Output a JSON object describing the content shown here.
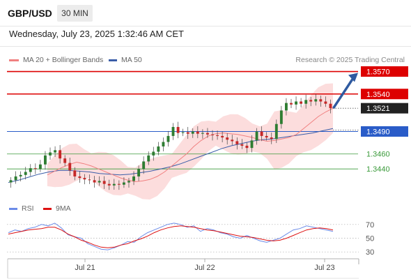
{
  "header": {
    "pair": "GBP/USD",
    "timeframe": "30 MIN",
    "datetime": "Wednesday, July 23, 2025 1:32:46 AM CET"
  },
  "legend": {
    "ma20_label": "MA 20 + Bollinger Bands",
    "ma50_label": "MA 50",
    "credit": "Research © 2025 Trading Central",
    "rsi_label": "RSI",
    "rsi_ma_label": "9MA"
  },
  "colors": {
    "resistance": "#dd0000",
    "support_line": "#2a5cc8",
    "support_green": "#3a9a3a",
    "ma20": "#f08080",
    "ma50": "#3a5da8",
    "bollinger_fill": "#fbd7d7",
    "candle_up": "#2e7d32",
    "candle_down": "#c62828",
    "rsi": "#6b8be8",
    "rsi_ma": "#dd1111",
    "arrow": "#2f5aa0"
  },
  "chart_data": [
    {
      "type": "candlestick",
      "title": "GBP/USD 30 MIN",
      "ylim": [
        1.3416,
        1.3577
      ],
      "x_ticks": [
        "Jul 21",
        "Jul 22",
        "Jul 23"
      ],
      "levels": [
        {
          "label": "1.3570",
          "value": 1.357,
          "kind": "resistance"
        },
        {
          "label": "1.3540",
          "value": 1.354,
          "kind": "resistance"
        },
        {
          "label": "1.3521",
          "value": 1.3521,
          "kind": "current"
        },
        {
          "label": "1.3490",
          "value": 1.349,
          "kind": "pivot"
        },
        {
          "label": "1.3460",
          "value": 1.346,
          "kind": "support"
        },
        {
          "label": "1.3440",
          "value": 1.344,
          "kind": "support"
        }
      ],
      "series": [
        {
          "name": "Price",
          "values": [
            1.3425,
            1.343,
            1.3432,
            1.3436,
            1.3441,
            1.344,
            1.3446,
            1.3458,
            1.3462,
            1.3465,
            1.3454,
            1.3448,
            1.3438,
            1.343,
            1.3428,
            1.3426,
            1.3425,
            1.3422,
            1.3424,
            1.342,
            1.3418,
            1.342,
            1.3419,
            1.3422,
            1.3424,
            1.343,
            1.344,
            1.345,
            1.3458,
            1.3463,
            1.347,
            1.3476,
            1.3484,
            1.3496,
            1.3488,
            1.3489,
            1.3487,
            1.349,
            1.3487,
            1.3488,
            1.3486,
            1.3485,
            1.3484,
            1.3482,
            1.3479,
            1.3477,
            1.3473,
            1.3471,
            1.3468,
            1.3478,
            1.349,
            1.3484,
            1.3482,
            1.348,
            1.35,
            1.3518,
            1.3528,
            1.3526,
            1.353,
            1.3527,
            1.3532,
            1.353,
            1.3533,
            1.353,
            1.3527,
            1.3521
          ]
        },
        {
          "name": "MA 20",
          "values": [
            1.3432,
            1.3437,
            1.3442,
            1.3446,
            1.3449,
            1.3447,
            1.3444,
            1.344,
            1.3436,
            1.3432,
            1.3428,
            1.3425,
            1.3423,
            1.3424,
            1.3426,
            1.343,
            1.3436,
            1.3444,
            1.3452,
            1.346,
            1.347,
            1.3478,
            1.3484,
            1.3487,
            1.3488,
            1.3487,
            1.3486,
            1.3484,
            1.3482,
            1.3479,
            1.3477,
            1.3478,
            1.348,
            1.3482,
            1.3486,
            1.3494,
            1.3502,
            1.351,
            1.3516,
            1.3521
          ]
        },
        {
          "name": "MA 50",
          "values": [
            1.3422,
            1.3425,
            1.3429,
            1.3433,
            1.3436,
            1.3438,
            1.3438,
            1.3437,
            1.3436,
            1.3434,
            1.3433,
            1.3432,
            1.3433,
            1.3435,
            1.3437,
            1.344,
            1.3443,
            1.3447,
            1.3452,
            1.3457,
            1.3462,
            1.3467,
            1.3471,
            1.3474,
            1.3477,
            1.3479,
            1.348,
            1.3482,
            1.3484,
            1.3486,
            1.3488,
            1.3491,
            1.3494
          ]
        }
      ]
    },
    {
      "type": "line",
      "title": "RSI",
      "ylim": [
        20,
        80
      ],
      "y_ticks": [
        "70",
        "50",
        "30"
      ],
      "series": [
        {
          "name": "RSI",
          "values": [
            58,
            62,
            60,
            64,
            66,
            70,
            68,
            72,
            65,
            55,
            52,
            50,
            42,
            38,
            34,
            33,
            36,
            40,
            45,
            44,
            52,
            58,
            62,
            66,
            70,
            72,
            70,
            66,
            68,
            60,
            64,
            62,
            58,
            56,
            52,
            50,
            54,
            50,
            46,
            44,
            47,
            50,
            56,
            62,
            64,
            68,
            66,
            64,
            62,
            60
          ]
        },
        {
          "name": "9MA",
          "values": [
            56,
            58,
            60,
            62,
            63,
            64,
            66,
            66,
            62,
            56,
            52,
            47,
            44,
            40,
            37,
            36,
            37,
            40,
            42,
            46,
            49,
            53,
            58,
            62,
            65,
            67,
            68,
            67,
            66,
            64,
            62,
            61,
            59,
            57,
            55,
            53,
            52,
            51,
            49,
            47,
            46,
            47,
            50,
            54,
            58,
            62,
            64,
            65,
            64,
            62
          ]
        }
      ]
    }
  ]
}
